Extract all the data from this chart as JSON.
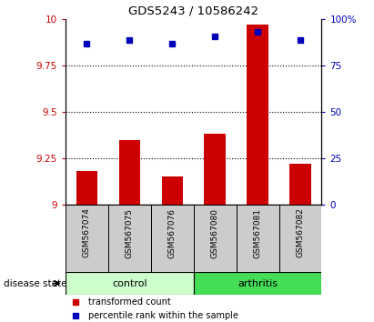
{
  "title": "GDS5243 / 10586242",
  "samples": [
    "GSM567074",
    "GSM567075",
    "GSM567076",
    "GSM567080",
    "GSM567081",
    "GSM567082"
  ],
  "red_values": [
    9.18,
    9.35,
    9.15,
    9.38,
    9.97,
    9.22
  ],
  "blue_values": [
    87,
    89,
    87,
    91,
    93,
    89
  ],
  "ylim_left": [
    9.0,
    10.0
  ],
  "ylim_right": [
    0,
    100
  ],
  "yticks_left": [
    9.0,
    9.25,
    9.5,
    9.75,
    10.0
  ],
  "ytick_labels_left": [
    "9",
    "9.25",
    "9.5",
    "9.75",
    "10"
  ],
  "yticks_right": [
    0,
    25,
    50,
    75,
    100
  ],
  "ytick_labels_right": [
    "0",
    "25",
    "50",
    "75",
    "100%"
  ],
  "group_control_color": "#CCFFCC",
  "group_arthritis_color": "#44DD55",
  "disease_state_label": "disease state",
  "legend_red": "transformed count",
  "legend_blue": "percentile rank within the sample",
  "red_color": "#CC0000",
  "blue_color": "#0000BB",
  "bar_width": 0.5,
  "sample_label_bg": "#CCCCCC",
  "gridline_ticks": [
    9.25,
    9.5,
    9.75
  ]
}
